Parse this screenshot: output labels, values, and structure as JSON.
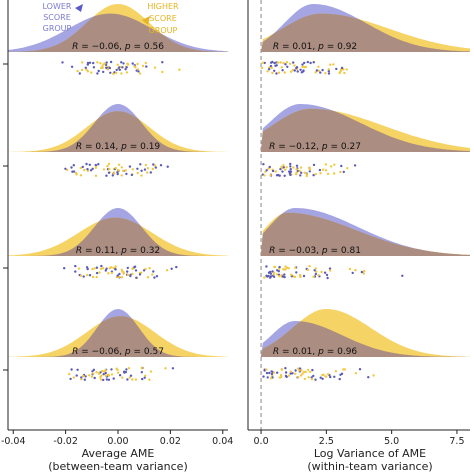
{
  "colors": {
    "lower": "#8f8fdc",
    "higher": "#f2c83e",
    "overlap": "#a88a84",
    "axis": "#222222",
    "dashed": "#888888"
  },
  "legend": {
    "lower_label": [
      "LOWER",
      "SCORE",
      "GROUP"
    ],
    "higher_label": [
      "HIGHER",
      "SCORE",
      "GROUP"
    ]
  },
  "chart_data": [
    {
      "type": "area",
      "panel": "left",
      "xlabel": "Average AME",
      "xlabel2": "(between-team variance)",
      "xlim": [
        -0.042,
        0.042
      ],
      "xticks": [
        -0.04,
        -0.02,
        0.0,
        0.02,
        0.04
      ],
      "xtick_labels": [
        "-0.04",
        "-0.02",
        "0.00",
        "0.02",
        "0.04"
      ],
      "series": [
        "LOWER SCORE GROUP",
        "HIGHER SCORE GROUP"
      ],
      "rows": [
        {
          "R": "−0.06",
          "p": "0.56",
          "lower": {
            "mu": -0.003,
            "sd": 0.016,
            "amp": 0.8
          },
          "higher": {
            "mu": 0.0,
            "sd": 0.012,
            "amp": 1.0
          }
        },
        {
          "R": "0.14",
          "p": "0.19",
          "lower": {
            "mu": 0.0,
            "sd": 0.009,
            "amp": 1.0
          },
          "higher": {
            "mu": 0.0,
            "sd": 0.012,
            "amp": 0.85
          }
        },
        {
          "R": "0.11",
          "p": "0.32",
          "lower": {
            "mu": 0.0,
            "sd": 0.009,
            "amp": 1.0
          },
          "higher": {
            "mu": -0.001,
            "sd": 0.014,
            "amp": 0.8
          }
        },
        {
          "R": "−0.06",
          "p": "0.57",
          "lower": {
            "mu": 0.0,
            "sd": 0.008,
            "amp": 1.0
          },
          "higher": {
            "mu": 0.001,
            "sd": 0.013,
            "amp": 0.85
          }
        }
      ]
    },
    {
      "type": "area",
      "panel": "right",
      "xlabel": "Log Variance of AME",
      "xlabel2": "(within-team variance)",
      "xlim": [
        -0.5,
        8.0
      ],
      "xticks": [
        0.0,
        2.5,
        5.0,
        7.5
      ],
      "xtick_labels": [
        "0.0",
        "2.5",
        "5.0",
        "7.5"
      ],
      "series": [
        "LOWER SCORE GROUP",
        "HIGHER SCORE GROUP"
      ],
      "rows": [
        {
          "R": "0.01",
          "p": "0.92",
          "lower": {
            "mu": 2.0,
            "sdl": 1.1,
            "sdr": 2.0,
            "amp": 1.0
          },
          "higher": {
            "mu": 2.3,
            "sdl": 1.5,
            "sdr": 2.6,
            "amp": 0.8
          }
        },
        {
          "R": "−0.12",
          "p": "0.27",
          "lower": {
            "mu": 1.5,
            "sdl": 1.2,
            "sdr": 2.3,
            "amp": 1.0
          },
          "higher": {
            "mu": 1.9,
            "sdl": 1.5,
            "sdr": 2.8,
            "amp": 0.9
          }
        },
        {
          "R": "−0.03",
          "p": "0.81",
          "lower": {
            "mu": 1.3,
            "sdl": 1.0,
            "sdr": 2.4,
            "amp": 1.0
          },
          "higher": {
            "mu": 1.0,
            "sdl": 0.9,
            "sdr": 2.6,
            "amp": 0.9
          }
        },
        {
          "R": "0.01",
          "p": "0.96",
          "lower": {
            "mu": 1.3,
            "sdl": 0.9,
            "sdr": 1.8,
            "amp": 0.75
          },
          "higher": {
            "mu": 2.5,
            "sdl": 1.3,
            "sdr": 1.7,
            "amp": 1.0
          }
        }
      ]
    }
  ]
}
